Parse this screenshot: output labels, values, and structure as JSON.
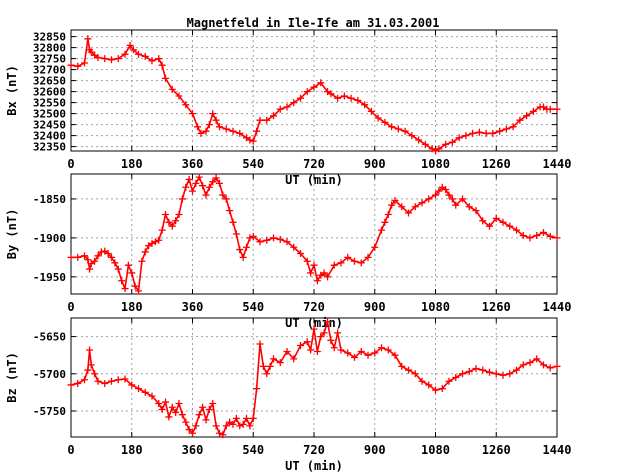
{
  "chart_data": {
    "type": "line",
    "title": "Magnetfeld in Ile-Ife am 31.03.2001",
    "colors": {
      "series": "#ff0000",
      "grid": "#a0a0a0",
      "axis": "#000000"
    },
    "marker": "plus",
    "panels": [
      {
        "name": "Bx",
        "ylabel": "Bx (nT)",
        "xlabel": "UT (min)",
        "xlim": [
          0,
          1440
        ],
        "ylim": [
          32330,
          32880
        ],
        "xticks": [
          0,
          180,
          360,
          540,
          720,
          900,
          1080,
          1260,
          1440
        ],
        "yticks": [
          32350,
          32400,
          32450,
          32500,
          32550,
          32600,
          32650,
          32700,
          32750,
          32800,
          32850
        ],
        "grid": true,
        "series": [
          {
            "name": "Bx",
            "x": [
              0,
              20,
              40,
              50,
              55,
              60,
              70,
              80,
              100,
              120,
              140,
              160,
              175,
              185,
              200,
              220,
              240,
              260,
              270,
              280,
              300,
              320,
              340,
              360,
              375,
              385,
              400,
              410,
              420,
              430,
              440,
              460,
              480,
              500,
              520,
              530,
              540,
              550,
              560,
              580,
              600,
              620,
              640,
              660,
              680,
              700,
              720,
              740,
              760,
              770,
              790,
              810,
              830,
              850,
              870,
              890,
              910,
              930,
              950,
              970,
              990,
              1010,
              1030,
              1050,
              1070,
              1080,
              1090,
              1110,
              1130,
              1150,
              1170,
              1190,
              1210,
              1230,
              1250,
              1270,
              1290,
              1310,
              1330,
              1350,
              1370,
              1390,
              1400,
              1410,
              1420,
              1440
            ],
            "y": [
              32720,
              32715,
              32730,
              32840,
              32790,
              32780,
              32765,
              32755,
              32750,
              32745,
              32750,
              32770,
              32810,
              32790,
              32770,
              32760,
              32740,
              32750,
              32720,
              32660,
              32610,
              32580,
              32540,
              32500,
              32440,
              32410,
              32420,
              32450,
              32500,
              32470,
              32440,
              32430,
              32420,
              32410,
              32390,
              32380,
              32375,
              32420,
              32470,
              32470,
              32490,
              32520,
              32530,
              32550,
              32570,
              32600,
              32620,
              32640,
              32600,
              32590,
              32570,
              32580,
              32570,
              32560,
              32540,
              32510,
              32480,
              32460,
              32440,
              32430,
              32420,
              32400,
              32380,
              32360,
              32340,
              32330,
              32340,
              32360,
              32370,
              32390,
              32400,
              32410,
              32415,
              32410,
              32410,
              32420,
              32430,
              32440,
              32470,
              32490,
              32510,
              32530,
              32530,
              32520,
              32520,
              32520
            ]
          }
        ]
      },
      {
        "name": "By",
        "ylabel": "By (nT)",
        "xlabel": "UT (min)",
        "xlim": [
          0,
          1440
        ],
        "ylim": [
          -1972,
          -1818
        ],
        "xticks": [
          0,
          180,
          360,
          540,
          720,
          900,
          1080,
          1260,
          1440
        ],
        "yticks": [
          -1850,
          -1900,
          -1950
        ],
        "grid": true,
        "series": [
          {
            "name": "By",
            "x": [
              0,
              20,
              40,
              50,
              55,
              60,
              70,
              80,
              90,
              100,
              110,
              120,
              130,
              140,
              150,
              160,
              170,
              180,
              190,
              200,
              210,
              220,
              230,
              240,
              250,
              260,
              270,
              280,
              290,
              300,
              310,
              320,
              330,
              340,
              350,
              360,
              370,
              380,
              390,
              400,
              410,
              420,
              430,
              440,
              450,
              460,
              470,
              480,
              490,
              500,
              510,
              520,
              530,
              540,
              560,
              580,
              600,
              620,
              640,
              660,
              680,
              700,
              710,
              720,
              730,
              740,
              750,
              760,
              780,
              800,
              820,
              840,
              860,
              880,
              900,
              920,
              930,
              940,
              950,
              960,
              980,
              1000,
              1020,
              1040,
              1060,
              1080,
              1090,
              1100,
              1110,
              1120,
              1130,
              1140,
              1160,
              1180,
              1200,
              1220,
              1240,
              1260,
              1280,
              1300,
              1320,
              1340,
              1360,
              1380,
              1400,
              1420,
              1440
            ],
            "y": [
              -1925,
              -1925,
              -1923,
              -1928,
              -1940,
              -1933,
              -1930,
              -1923,
              -1918,
              -1917,
              -1920,
              -1925,
              -1932,
              -1940,
              -1955,
              -1965,
              -1935,
              -1945,
              -1962,
              -1968,
              -1930,
              -1918,
              -1910,
              -1907,
              -1905,
              -1903,
              -1890,
              -1870,
              -1880,
              -1885,
              -1878,
              -1870,
              -1850,
              -1835,
              -1825,
              -1840,
              -1830,
              -1822,
              -1833,
              -1845,
              -1835,
              -1828,
              -1823,
              -1830,
              -1845,
              -1850,
              -1865,
              -1880,
              -1895,
              -1915,
              -1925,
              -1912,
              -1900,
              -1898,
              -1905,
              -1903,
              -1900,
              -1902,
              -1905,
              -1912,
              -1920,
              -1930,
              -1945,
              -1935,
              -1955,
              -1948,
              -1945,
              -1950,
              -1935,
              -1932,
              -1925,
              -1930,
              -1932,
              -1925,
              -1912,
              -1890,
              -1880,
              -1870,
              -1858,
              -1852,
              -1860,
              -1868,
              -1860,
              -1855,
              -1850,
              -1845,
              -1840,
              -1835,
              -1838,
              -1845,
              -1850,
              -1858,
              -1850,
              -1860,
              -1865,
              -1878,
              -1885,
              -1875,
              -1880,
              -1885,
              -1890,
              -1897,
              -1900,
              -1897,
              -1893,
              -1898,
              -1900
            ]
          }
        ]
      },
      {
        "name": "Bz",
        "ylabel": "Bz (nT)",
        "xlabel": "UT (min)",
        "xlim": [
          0,
          1440
        ],
        "ylim": [
          -5785,
          -5625
        ],
        "xticks": [
          0,
          180,
          360,
          540,
          720,
          900,
          1080,
          1260,
          1440
        ],
        "yticks": [
          -5650,
          -5700,
          -5750
        ],
        "grid": true,
        "series": [
          {
            "name": "Bz",
            "x": [
              0,
              20,
              40,
              50,
              55,
              60,
              70,
              80,
              100,
              120,
              140,
              160,
              180,
              200,
              220,
              240,
              260,
              270,
              280,
              290,
              300,
              310,
              320,
              330,
              340,
              350,
              360,
              370,
              380,
              390,
              400,
              410,
              420,
              430,
              440,
              450,
              460,
              470,
              480,
              490,
              500,
              510,
              520,
              530,
              540,
              550,
              560,
              570,
              580,
              590,
              600,
              620,
              640,
              660,
              680,
              700,
              710,
              720,
              730,
              740,
              750,
              760,
              770,
              780,
              790,
              800,
              820,
              840,
              860,
              880,
              900,
              920,
              940,
              960,
              980,
              1000,
              1020,
              1040,
              1060,
              1080,
              1100,
              1120,
              1140,
              1160,
              1180,
              1200,
              1220,
              1240,
              1260,
              1280,
              1300,
              1320,
              1340,
              1360,
              1380,
              1400,
              1420,
              1440
            ],
            "y": [
              -5715,
              -5713,
              -5708,
              -5695,
              -5668,
              -5688,
              -5700,
              -5710,
              -5713,
              -5710,
              -5708,
              -5707,
              -5715,
              -5720,
              -5725,
              -5730,
              -5740,
              -5748,
              -5738,
              -5758,
              -5745,
              -5752,
              -5740,
              -5755,
              -5765,
              -5775,
              -5780,
              -5770,
              -5755,
              -5745,
              -5762,
              -5748,
              -5740,
              -5770,
              -5780,
              -5782,
              -5770,
              -5765,
              -5768,
              -5760,
              -5770,
              -5768,
              -5760,
              -5770,
              -5760,
              -5720,
              -5660,
              -5690,
              -5700,
              -5690,
              -5680,
              -5685,
              -5670,
              -5680,
              -5662,
              -5657,
              -5668,
              -5640,
              -5670,
              -5650,
              -5645,
              -5630,
              -5655,
              -5665,
              -5645,
              -5668,
              -5672,
              -5678,
              -5670,
              -5675,
              -5672,
              -5665,
              -5668,
              -5675,
              -5690,
              -5695,
              -5700,
              -5710,
              -5715,
              -5722,
              -5720,
              -5710,
              -5705,
              -5700,
              -5697,
              -5693,
              -5695,
              -5698,
              -5700,
              -5702,
              -5700,
              -5695,
              -5688,
              -5685,
              -5680,
              -5688,
              -5692,
              -5690
            ]
          }
        ]
      }
    ]
  }
}
